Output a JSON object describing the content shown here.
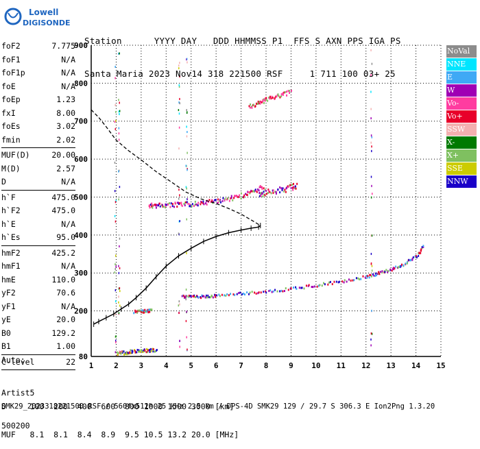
{
  "logo": {
    "line1": "Lowell",
    "line2": "DIGISONDE"
  },
  "header": {
    "labels_line": "Station      YYYY DAY   DDD HHMMSS P1  FFS S AXN PPS IGA PS",
    "values_line": "Santa Maria 2023 Nov14 318 221500 RSF     1 711 100 03+ 25"
  },
  "params": [
    {
      "name": "foF2",
      "value": "7.775"
    },
    {
      "name": "foF1",
      "value": "N/A"
    },
    {
      "name": "foF1p",
      "value": "N/A"
    },
    {
      "name": "foE",
      "value": "N/A"
    },
    {
      "name": "foEp",
      "value": "1.23"
    },
    {
      "name": "fxI",
      "value": "8.00"
    },
    {
      "name": "foEs",
      "value": "3.02"
    },
    {
      "name": "fmin",
      "value": "2.02"
    },
    {
      "sep": true
    },
    {
      "name": "MUF(D)",
      "value": "20.00"
    },
    {
      "name": "M(D)",
      "value": "2.57"
    },
    {
      "name": "D",
      "value": "N/A"
    },
    {
      "sep": true
    },
    {
      "name": "h`F",
      "value": "475.0"
    },
    {
      "name": "h`F2",
      "value": "475.0"
    },
    {
      "name": "h`E",
      "value": "N/A"
    },
    {
      "name": "h`Es",
      "value": "95.0"
    },
    {
      "sep": true
    },
    {
      "name": "hmF2",
      "value": "425.2"
    },
    {
      "name": "hmF1",
      "value": "N/A"
    },
    {
      "name": "hmE",
      "value": "110.0"
    },
    {
      "name": "yF2",
      "value": "70.6"
    },
    {
      "name": "yF1",
      "value": "N/A"
    },
    {
      "name": "yE",
      "value": "20.0"
    },
    {
      "name": "B0",
      "value": "129.2"
    },
    {
      "name": "B1",
      "value": "1.00"
    },
    {
      "sep": true
    },
    {
      "name": "C-level",
      "value": "22"
    },
    {
      "sep": true
    }
  ],
  "auto": {
    "line1": "Auto:",
    "line2": "Artist5",
    "line3": "500200"
  },
  "legend": [
    {
      "label": "NoVal",
      "color": "#8c8c8c"
    },
    {
      "label": "NNE",
      "color": "#00e5ff"
    },
    {
      "label": "E",
      "color": "#3fa9f5"
    },
    {
      "label": "W",
      "color": "#a000b4"
    },
    {
      "label": "Vo-",
      "color": "#ff3ca0"
    },
    {
      "label": "Vo+",
      "color": "#e8002a"
    },
    {
      "label": "SSW",
      "color": "#f4b0b0"
    },
    {
      "label": "X-",
      "color": "#007a00"
    },
    {
      "label": "X+",
      "color": "#7fc060"
    },
    {
      "label": "SSE",
      "color": "#cccc00"
    },
    {
      "label": "NNW",
      "color": "#1a00c8"
    }
  ],
  "footer": {
    "d_line": "D     100  200  400  600  800 1000 1500 3000 [km]",
    "muf_line": "MUF   8.1  8.1  8.4  8.9  9.5 10.5 13.2 20.0 [MHz]",
    "file_line": "SMK29_2023318221500.RSF / 560fx512h 25 kHz 2.5 km / DPS-4D SMK29 129 / 29.7 S 306.3 E Ion2Png 1.3.20"
  },
  "chart_data": {
    "type": "scatter",
    "xlim": [
      1,
      15
    ],
    "ylim": [
      80,
      900
    ],
    "x_ticks": [
      1,
      2,
      3,
      4,
      5,
      6,
      7,
      8,
      9,
      10,
      11,
      12,
      13,
      14,
      15
    ],
    "y_ticks": [
      80,
      200,
      300,
      400,
      500,
      600,
      700,
      800,
      900
    ],
    "grid": true,
    "profile": {
      "x": [
        1.1,
        1.3,
        1.6,
        1.9,
        2.2,
        2.5,
        2.8,
        3.2,
        3.6,
        4.0,
        4.5,
        5.0,
        5.5,
        6.0,
        6.5,
        7.0,
        7.4,
        7.7,
        7.775
      ],
      "y": [
        165,
        172,
        182,
        192,
        205,
        218,
        235,
        260,
        290,
        318,
        345,
        365,
        383,
        396,
        406,
        413,
        418,
        421,
        425
      ]
    },
    "extrapolation": {
      "x": [
        1.0,
        1.3,
        1.6,
        2.0,
        2.5,
        3.0,
        3.6,
        4.2,
        4.8,
        5.4,
        6.0,
        6.5,
        7.0,
        7.4,
        7.775
      ],
      "y": [
        730,
        710,
        685,
        650,
        622,
        598,
        567,
        540,
        513,
        495,
        483,
        470,
        455,
        440,
        425
      ]
    },
    "trace_o_F2": {
      "x": [
        3.3,
        3.6,
        4.0,
        4.5,
        5.0,
        5.5,
        6.0,
        6.5,
        7.0,
        7.5,
        7.9
      ],
      "y": [
        480,
        480,
        481,
        482,
        484,
        487,
        492,
        498,
        506,
        517,
        530
      ]
    },
    "trace_o_F2_upper": {
      "x": [
        7.7,
        8.0,
        8.5,
        9.0,
        9.2
      ],
      "y": [
        510,
        514,
        520,
        528,
        534
      ]
    },
    "trace_x_F2": {
      "x": [
        4.6,
        5.0,
        5.5,
        6.0,
        7.0,
        8.0,
        9.0,
        10.0,
        11.0,
        12.0,
        12.5,
        13.0,
        13.5,
        14.0,
        14.3
      ],
      "y": [
        240,
        240,
        240,
        242,
        248,
        254,
        260,
        270,
        280,
        292,
        302,
        312,
        325,
        345,
        375
      ]
    },
    "trace_multi_hop": {
      "x": [
        7.3,
        7.7,
        8.0,
        8.5,
        9.0
      ],
      "y": [
        740,
        750,
        760,
        770,
        780
      ]
    },
    "trace_Es": {
      "x": [
        2.0,
        2.3,
        2.6,
        3.0,
        3.3,
        3.6
      ],
      "y": [
        90,
        92,
        95,
        97,
        98,
        100
      ]
    },
    "trace_Es_2hop": {
      "x": [
        2.7,
        3.0,
        3.2,
        3.4
      ],
      "y": [
        200,
        201,
        202,
        203
      ]
    }
  }
}
